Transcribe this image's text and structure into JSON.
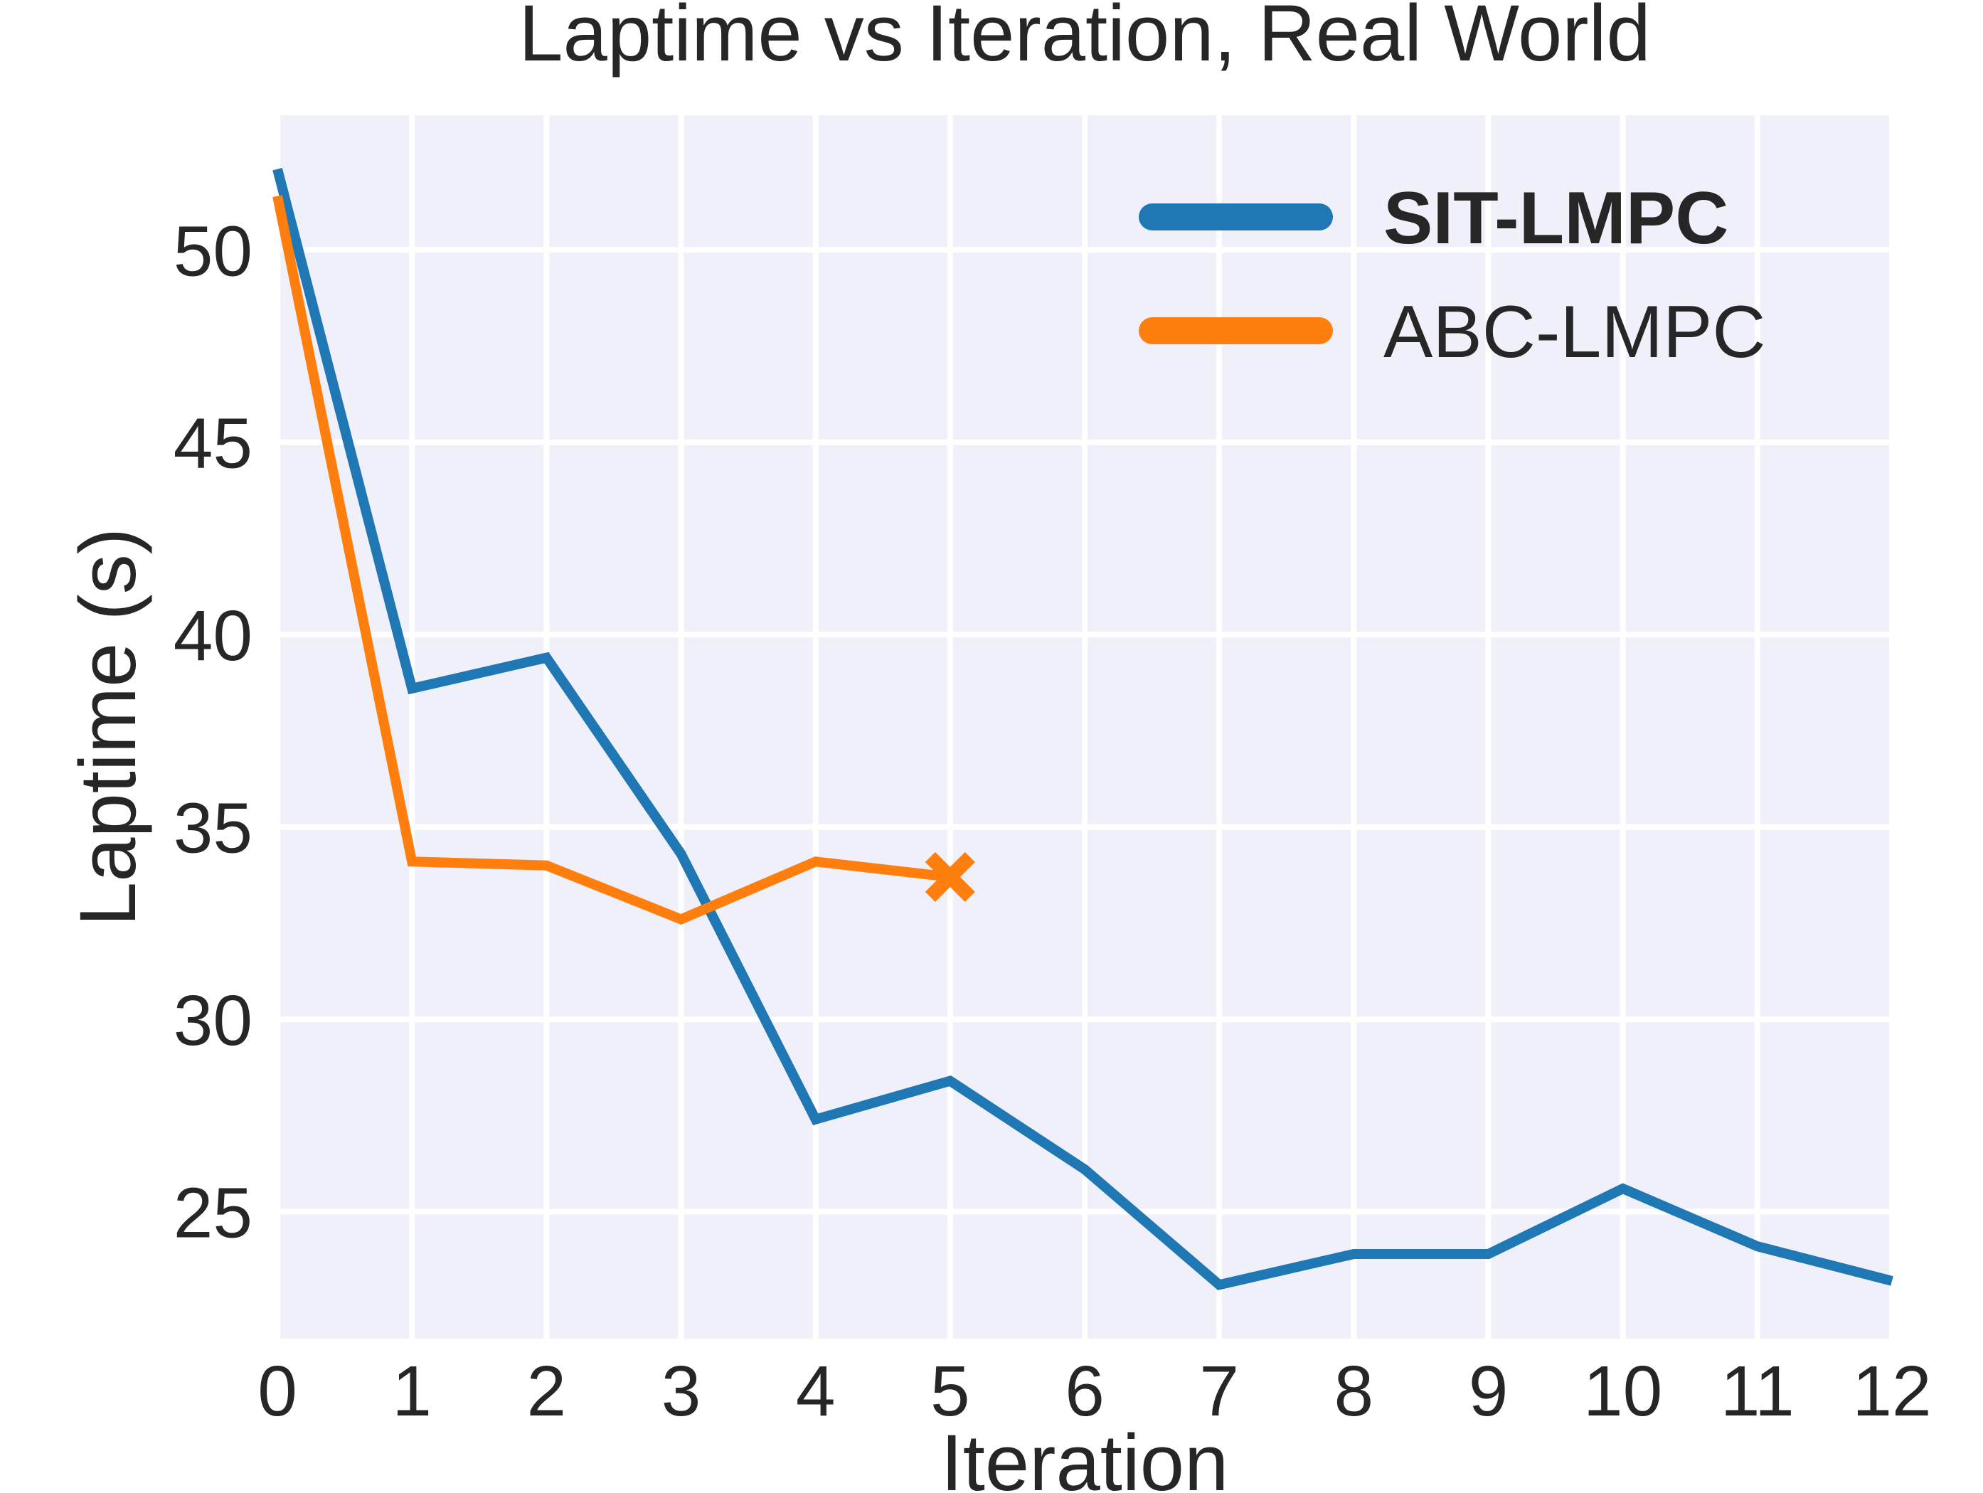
{
  "chart_data": {
    "type": "line",
    "title": "Laptime vs Iteration, Real World",
    "xlabel": "Iteration",
    "ylabel": "Laptime (s)",
    "xlim": [
      0,
      12
    ],
    "ylim": [
      21.7,
      53.5
    ],
    "x_ticks": [
      0,
      1,
      2,
      3,
      4,
      5,
      6,
      7,
      8,
      9,
      10,
      11,
      12
    ],
    "y_ticks": [
      25,
      30,
      35,
      40,
      45,
      50
    ],
    "grid": true,
    "legend_position": "top-right",
    "series": [
      {
        "name": "SIT-LMPC",
        "color": "#1f77b4",
        "legend_bold": true,
        "x": [
          0,
          1,
          2,
          3,
          4,
          5,
          6,
          7,
          8,
          9,
          10,
          11,
          12
        ],
        "y": [
          52.1,
          38.6,
          39.4,
          34.3,
          27.4,
          28.4,
          26.1,
          23.1,
          23.9,
          23.9,
          25.6,
          24.1,
          23.2
        ]
      },
      {
        "name": "ABC-LMPC",
        "color": "#ff7f0e",
        "legend_bold": false,
        "x": [
          0,
          1,
          2,
          3,
          4,
          5
        ],
        "y": [
          51.4,
          34.1,
          34.0,
          32.6,
          34.1,
          33.7
        ],
        "end_marker": "x"
      }
    ]
  }
}
